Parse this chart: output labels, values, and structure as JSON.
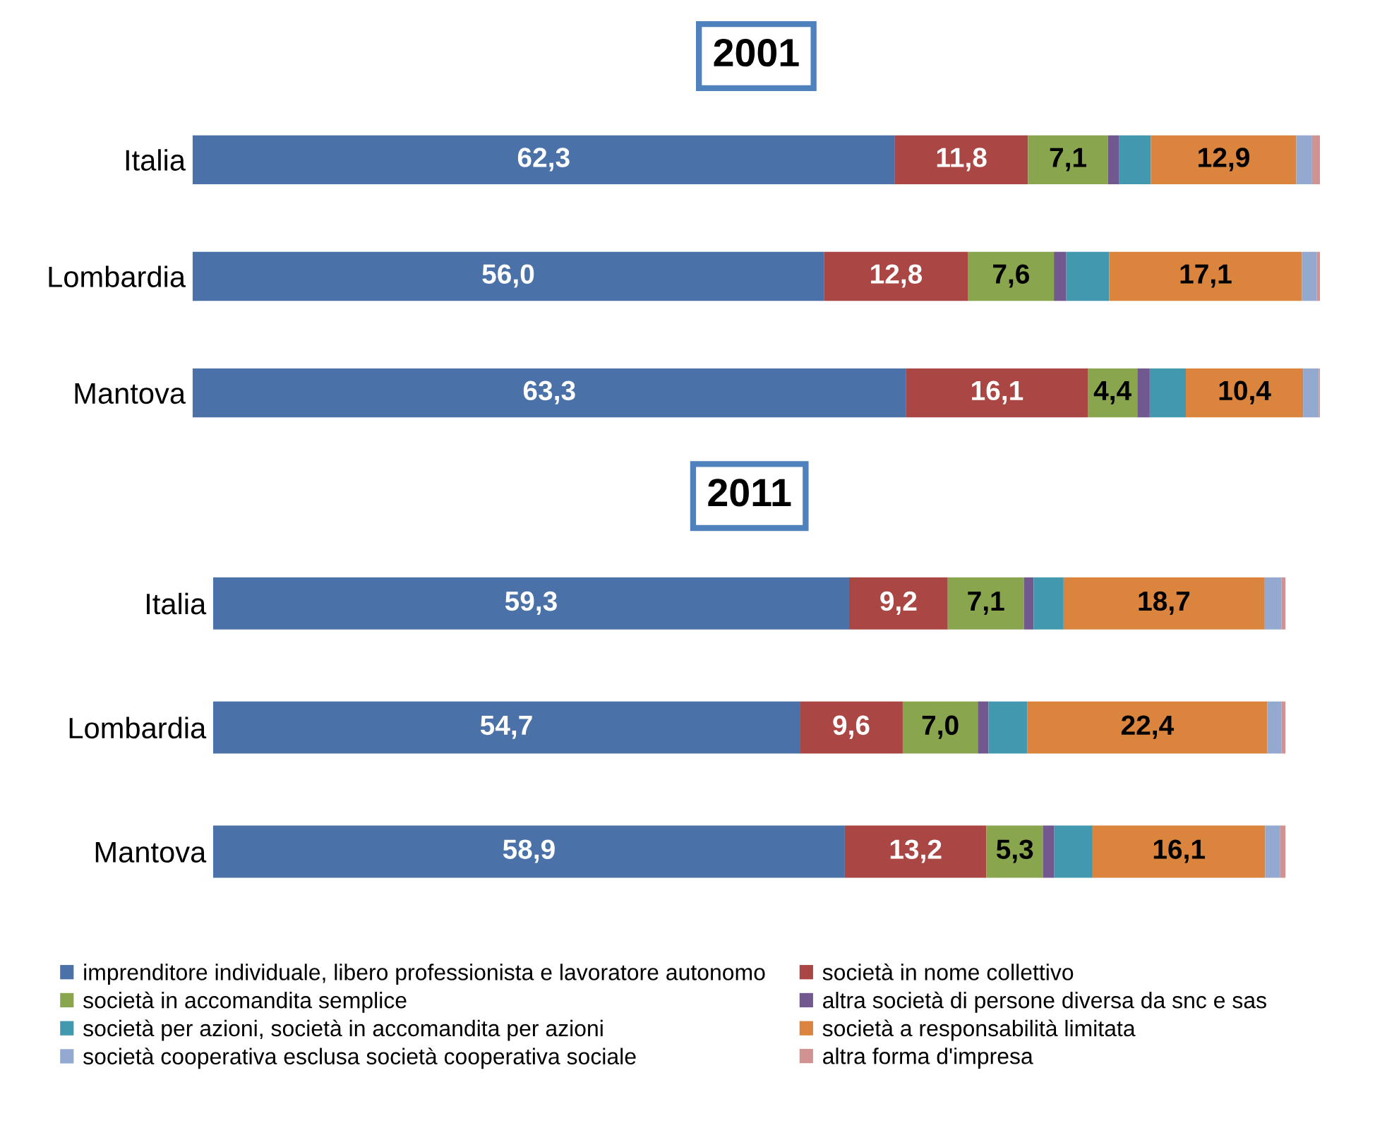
{
  "chart_data": [
    {
      "type": "bar",
      "title": "2001",
      "orientation": "horizontal",
      "stacked": true,
      "categories": [
        "Italia",
        "Lombardia",
        "Mantova"
      ],
      "xlim": [
        0,
        100
      ],
      "tick_labels": "y",
      "series": [
        {
          "color": "#4a72a8",
          "values": [
            62.3,
            56.0,
            63.3
          ],
          "value_labels": [
            "62,3",
            "56,0",
            "63,3"
          ]
        },
        {
          "color": "#aa4643",
          "values": [
            11.8,
            12.8,
            16.1
          ],
          "value_labels": [
            "11,8",
            "12,8",
            "16,1"
          ]
        },
        {
          "color": "#89a54e",
          "values": [
            7.1,
            7.6,
            4.4
          ],
          "value_labels": [
            "7,1",
            "7,6",
            "4,4"
          ]
        },
        {
          "color": "#71588f",
          "values": [
            1.0,
            1.1,
            1.1
          ],
          "value_labels": [
            null,
            null,
            null
          ]
        },
        {
          "color": "#4198af",
          "values": [
            2.8,
            3.8,
            3.2
          ],
          "value_labels": [
            null,
            null,
            null
          ]
        },
        {
          "color": "#db843d",
          "values": [
            12.9,
            17.1,
            10.4
          ],
          "value_labels": [
            "12,9",
            "17,1",
            "10,4"
          ]
        },
        {
          "color": "#93a9cf",
          "values": [
            1.4,
            1.3,
            1.4
          ],
          "value_labels": [
            null,
            null,
            null
          ]
        },
        {
          "color": "#d19392",
          "values": [
            0.7,
            0.3,
            0.1
          ],
          "value_labels": [
            null,
            null,
            null
          ]
        }
      ]
    },
    {
      "type": "bar",
      "title": "2011",
      "orientation": "horizontal",
      "stacked": true,
      "categories": [
        "Italia",
        "Lombardia",
        "Mantova"
      ],
      "xlim": [
        0,
        100
      ],
      "tick_labels": "y",
      "legend": "bottom",
      "series": [
        {
          "name": "imprenditore individuale, libero professionista e lavoratore autonomo",
          "color": "#4a72a8",
          "values": [
            59.3,
            54.7,
            58.9
          ],
          "value_labels": [
            "59,3",
            "54,7",
            "58,9"
          ]
        },
        {
          "name": "società in nome collettivo",
          "color": "#aa4643",
          "values": [
            9.2,
            9.6,
            13.2
          ],
          "value_labels": [
            "9,2",
            "9,6",
            "13,2"
          ]
        },
        {
          "name": "società in accomandita semplice",
          "color": "#89a54e",
          "values": [
            7.1,
            7.0,
            5.3
          ],
          "value_labels": [
            "7,1",
            "7,0",
            "5,3"
          ]
        },
        {
          "name": "altra società di persone diversa da snc e sas",
          "color": "#71588f",
          "values": [
            0.9,
            1.0,
            1.0
          ],
          "value_labels": [
            null,
            null,
            null
          ]
        },
        {
          "name": "società per azioni, società in accomandita per azioni",
          "color": "#4198af",
          "values": [
            2.8,
            3.6,
            3.6
          ],
          "value_labels": [
            null,
            null,
            null
          ]
        },
        {
          "name": "società a responsabilità limitata",
          "color": "#db843d",
          "values": [
            18.7,
            22.4,
            16.1
          ],
          "value_labels": [
            "18,7",
            "22,4",
            "16,1"
          ]
        },
        {
          "name": "società cooperativa esclusa società cooperativa sociale",
          "color": "#93a9cf",
          "values": [
            1.6,
            1.3,
            1.4
          ],
          "value_labels": [
            null,
            null,
            null
          ]
        },
        {
          "name": "altra forma d'impresa",
          "color": "#d19392",
          "values": [
            0.4,
            0.4,
            0.5
          ],
          "value_labels": [
            null,
            null,
            null
          ]
        }
      ]
    }
  ]
}
